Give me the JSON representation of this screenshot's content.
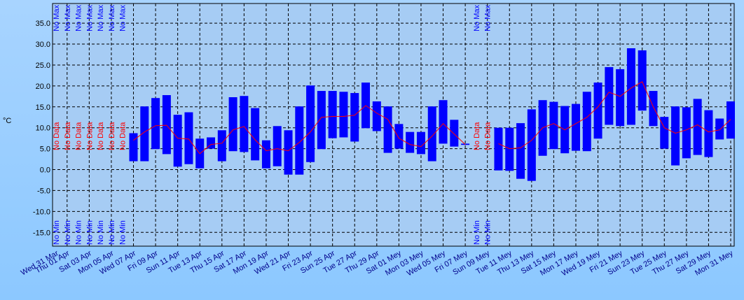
{
  "chart_data": {
    "type": "range_bar",
    "y_label": "°C",
    "categories": [
      "Wed 31 Mar",
      "Thu 01 Apr",
      null,
      "Sat 03 Apr",
      null,
      "Mon 05 Apr",
      null,
      "Wed 07 Apr",
      null,
      "Fri 09 Apr",
      null,
      "Sun 11 Apr",
      null,
      "Tue 13 Apr",
      null,
      "Thu 15 Apr",
      null,
      "Sat 17 Apr",
      null,
      "Mon 19 Apr",
      null,
      "Wed 21 Apr",
      null,
      "Fri 23 Apr",
      null,
      "Sun 25 Apr",
      null,
      "Tue 27 Apr",
      null,
      "Thu 29 Apr",
      null,
      "Sat 01 Mey",
      null,
      "Mon 03 Mey",
      null,
      "Wed 05 Mey",
      null,
      "Fri 07 Mey",
      null,
      "Sun 09 Mey",
      null,
      "Tue 11 Mey",
      null,
      "Thu 13 Mey",
      null,
      "Sat 15 Mey",
      null,
      "Mon 17 Mey",
      null,
      "Wed 19 Mey",
      null,
      "Fri 21 Mey",
      null,
      "Sun 23 Mey",
      null,
      "Tue 25 Mey",
      null,
      "Thu 27 Mey",
      null,
      "Sat 29 Mey",
      null,
      "Mon 31 Mey"
    ],
    "max": [
      null,
      null,
      null,
      null,
      null,
      null,
      null,
      8.7,
      15.1,
      17.1,
      17.8,
      13.1,
      13.7,
      7.4,
      7.7,
      9.4,
      17.3,
      17.6,
      14.7,
      7.0,
      10.4,
      9.4,
      15.1,
      20.1,
      18.8,
      18.8,
      18.6,
      18.3,
      20.8,
      16.3,
      15.1,
      10.9,
      9.0,
      9.0,
      15.1,
      16.6,
      11.9,
      6.2,
      null,
      null,
      10.0,
      10.0,
      11.1,
      14.4,
      16.6,
      16.2,
      15.2,
      15.7,
      18.6,
      20.8,
      24.5,
      24.0,
      29.0,
      28.5,
      18.8,
      12.6,
      15.1,
      14.9,
      16.9,
      14.2,
      12.2,
      16.3
    ],
    "min": [
      null,
      null,
      null,
      null,
      null,
      null,
      null,
      2.0,
      2.0,
      4.9,
      3.7,
      0.7,
      1.3,
      0.3,
      5.0,
      2.0,
      4.4,
      4.2,
      2.2,
      0.3,
      0.8,
      -1.2,
      -1.2,
      1.8,
      4.9,
      7.5,
      7.7,
      6.7,
      9.9,
      9.2,
      4.0,
      5.0,
      4.0,
      3.7,
      2.0,
      6.2,
      5.5,
      5.9,
      null,
      null,
      -0.2,
      -0.3,
      -2.2,
      -2.7,
      3.3,
      4.9,
      3.9,
      4.5,
      4.4,
      7.4,
      10.7,
      10.4,
      10.7,
      14.1,
      10.4,
      5.0,
      1.0,
      2.7,
      3.5,
      3.0,
      7.2,
      7.4
    ],
    "mean": [
      null,
      null,
      null,
      null,
      null,
      null,
      null,
      7,
      9,
      10.5,
      10.6,
      7.5,
      7.3,
      3.8,
      6,
      6.3,
      9.5,
      10.3,
      7.1,
      4.5,
      5,
      4.5,
      6.5,
      9,
      12.5,
      12.7,
      12.7,
      13,
      15.3,
      13.5,
      12,
      7.5,
      6,
      5.5,
      8,
      11,
      8.5,
      6,
      null,
      null,
      6.2,
      5,
      5.2,
      7,
      10,
      11,
      9.5,
      11,
      12.5,
      15,
      18.5,
      17.5,
      19.5,
      21,
      15,
      10,
      8.7,
      9.5,
      10.7,
      9,
      9.5,
      12
    ],
    "bar_color": "#0000ff",
    "line_color": "#ff0000",
    "no_data_text": "No Data",
    "no_max_text": "No Max",
    "no_min_text": "No Min",
    "ylim": [
      -18.3,
      39.7
    ],
    "yticks": [
      {
        "value": -15,
        "label": "-15.0"
      },
      {
        "value": -10,
        "label": "-10.0"
      },
      {
        "value": -5,
        "label": "-5.0"
      },
      {
        "value": 0,
        "label": "0.0"
      },
      {
        "value": 5,
        "label": "5.0"
      },
      {
        "value": 10,
        "label": "10.0"
      },
      {
        "value": 15,
        "label": "15.0"
      },
      {
        "value": 20,
        "label": "20.0"
      },
      {
        "value": 25,
        "label": "25.0"
      },
      {
        "value": 30,
        "label": "30.0"
      },
      {
        "value": 35,
        "label": "35.0"
      }
    ],
    "grid": true
  }
}
